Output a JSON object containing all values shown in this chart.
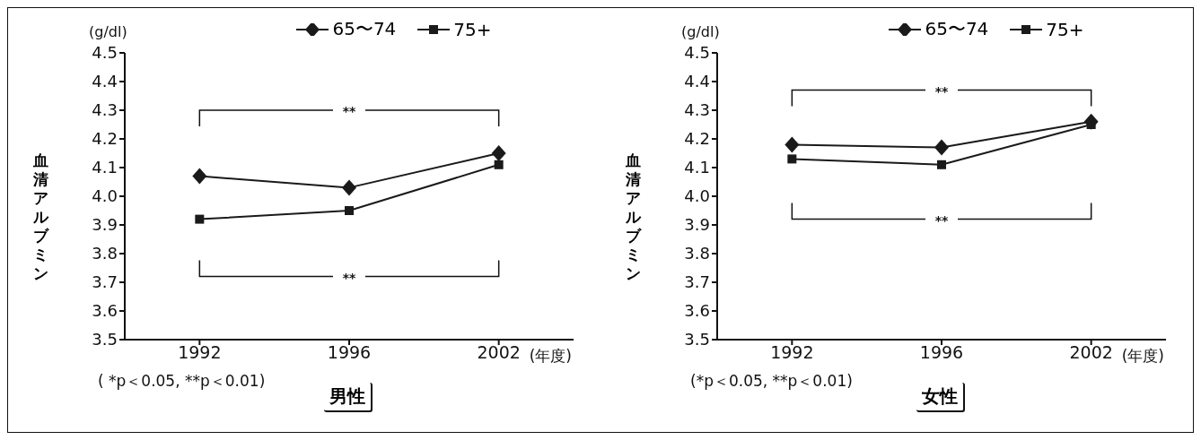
{
  "chart_data": [
    {
      "type": "line",
      "title": "男性",
      "ylabel": "血清アルブミン",
      "xlabel": "(年度)",
      "categories": [
        "1992",
        "1996",
        "2002"
      ],
      "series": [
        {
          "name": "65〜74",
          "color": "#1a1a1a",
          "marker": "diamond",
          "values": [
            4.07,
            4.03,
            4.15
          ]
        },
        {
          "name": "75+",
          "color": "#1a1a1a",
          "marker": "square",
          "values": [
            3.92,
            3.95,
            4.11
          ]
        }
      ],
      "ylim": [
        3.5,
        4.5
      ],
      "yticks": [
        3.5,
        3.6,
        3.7,
        3.8,
        3.9,
        {
          "value": 4,
          "label": "4.0"
        },
        4.1,
        4.2,
        4.3,
        4.4,
        4.5
      ],
      "legend": "top",
      "annotations": [
        "(g/dl)",
        "**",
        "**",
        "( *p＜0.05,  **p＜0.01)"
      ]
    },
    {
      "type": "line",
      "title": "女性",
      "ylabel": "血清アルブミン",
      "xlabel": "(年度)",
      "categories": [
        "1992",
        "1996",
        "2002"
      ],
      "series": [
        {
          "name": "65〜74",
          "color": "#1a1a1a",
          "marker": "diamond",
          "values": [
            4.18,
            4.17,
            4.26
          ]
        },
        {
          "name": "75+",
          "color": "#1a1a1a",
          "marker": "square",
          "values": [
            4.13,
            4.11,
            4.25
          ]
        }
      ],
      "ylim": [
        3.5,
        4.5
      ],
      "yticks": [
        3.5,
        3.6,
        3.7,
        3.8,
        3.9,
        {
          "value": 4,
          "label": "4.0"
        },
        4.1,
        4.2,
        4.3,
        4.4,
        4.5
      ],
      "legend": "top",
      "annotations": [
        "(g/dl)",
        "**",
        "**",
        "(*p＜0.05,  **p＜0.01)"
      ]
    }
  ]
}
